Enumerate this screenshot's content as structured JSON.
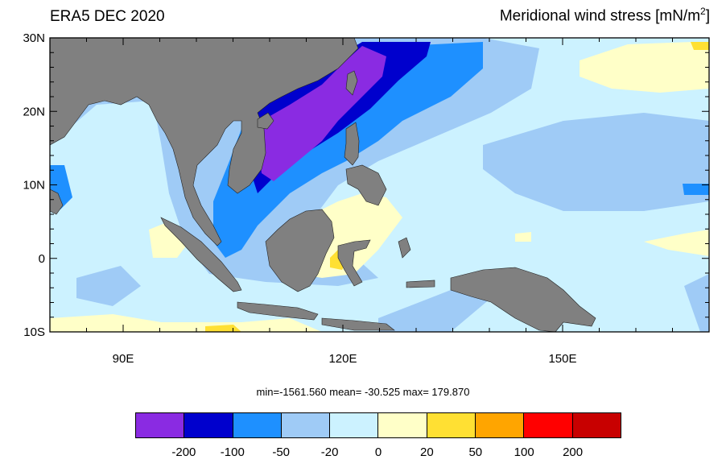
{
  "title_left": "ERA5 DEC 2020",
  "title_right": {
    "text": "Meridional wind stress [mN/m",
    "sup": "2",
    "close": "]"
  },
  "stats_text": "min=-1561.560  mean= -30.525  max= 179.870",
  "map": {
    "lon_range": [
      80,
      170
    ],
    "lat_range": [
      -10,
      30
    ],
    "lat_labels": [
      "30N",
      "20N",
      "10N",
      "0",
      "10S"
    ],
    "lon_labels": [
      "90E",
      "120E",
      "150E"
    ],
    "land_color": "#808080"
  },
  "colorbar": {
    "colors": [
      "#8a2be2",
      "#0000cd",
      "#1e90ff",
      "#9fcbf6",
      "#ccf2ff",
      "#ffffc8",
      "#ffe033",
      "#ffa500",
      "#ff0000",
      "#c80000"
    ],
    "labels": [
      "-200",
      "-100",
      "-50",
      "-20",
      "0",
      "20",
      "50",
      "100",
      "200"
    ]
  }
}
